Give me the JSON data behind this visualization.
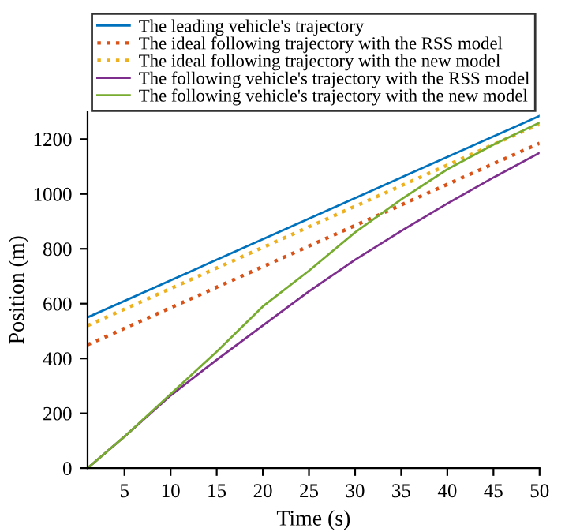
{
  "chart_data": {
    "type": "line",
    "xlabel": "Time (s)",
    "ylabel": "Position (m)",
    "xlim": [
      1,
      50
    ],
    "ylim": [
      0,
      1300
    ],
    "xticks": [
      5,
      10,
      15,
      20,
      25,
      30,
      35,
      40,
      45,
      50
    ],
    "yticks": [
      0,
      200,
      400,
      600,
      800,
      1000,
      1200
    ],
    "grid": false,
    "legend": "top",
    "series": [
      {
        "name": "The leading vehicle's trajectory",
        "color": "#0072bd",
        "line_style": "solid",
        "x": [
          1,
          50
        ],
        "values": [
          550,
          1285
        ]
      },
      {
        "name": "The ideal following trajectory with the RSS model",
        "color": "#d95319",
        "line_style": "dotted",
        "x": [
          1,
          50
        ],
        "values": [
          450,
          1185
        ]
      },
      {
        "name": "The ideal following trajectory with the new model",
        "color": "#edb120",
        "line_style": "dotted",
        "x": [
          1,
          50
        ],
        "values": [
          520,
          1255
        ]
      },
      {
        "name": "The following vehicle's trajectory with the RSS model",
        "color": "#7e2f8e",
        "line_style": "solid",
        "x": [
          1,
          5,
          10,
          15,
          20,
          25,
          30,
          35,
          40,
          45,
          50
        ],
        "values": [
          0,
          115,
          265,
          395,
          520,
          645,
          760,
          865,
          965,
          1060,
          1150
        ]
      },
      {
        "name": "The following vehicle's trajectory with the new model",
        "color": "#77ac30",
        "line_style": "solid",
        "x": [
          1,
          5,
          10,
          15,
          20,
          25,
          30,
          35,
          40,
          45,
          50
        ],
        "values": [
          0,
          115,
          270,
          425,
          590,
          720,
          860,
          980,
          1090,
          1180,
          1260
        ]
      }
    ]
  }
}
